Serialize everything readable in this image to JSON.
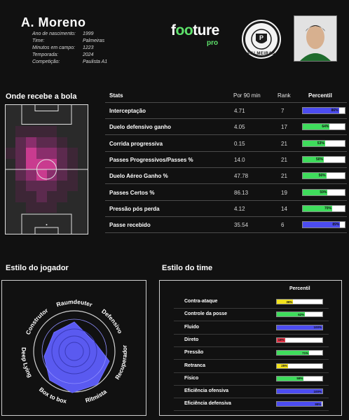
{
  "player": {
    "name": "A. Moreno",
    "info": [
      {
        "label": "Ano de nascimento:",
        "value": "1999"
      },
      {
        "label": "Time:",
        "value": "Palmeiras"
      },
      {
        "label": "Minutos em campo:",
        "value": "1223"
      },
      {
        "label": "Temporada:",
        "value": "2024"
      },
      {
        "label": "Competição:",
        "value": "Paulista A1"
      }
    ]
  },
  "brand": {
    "name_pre": "f",
    "name_oo": "oo",
    "name_post": "ture",
    "pro": "pro",
    "accent": "#5ee36b"
  },
  "crest": {
    "text": "PALMEIRAS",
    "monogram": "P",
    "color": "#1b5e20"
  },
  "heatmap": {
    "title": "Onde recebe a bola"
  },
  "stats": {
    "headers": {
      "stat": "Stats",
      "per90": "Por 90 min",
      "rank": "Rank",
      "percentile": "Percentil"
    },
    "rows": [
      {
        "name": "Interceptação",
        "value": "4.71",
        "rank": "7",
        "percentile": 86,
        "label": "86%",
        "color": "#4c4cf0"
      },
      {
        "name": "Duelo defensivo ganho",
        "value": "4.05",
        "rank": "17",
        "percentile": 64,
        "label": "64%",
        "color": "#3fdc5c"
      },
      {
        "name": "Corrida progressiva",
        "value": "0.15",
        "rank": "21",
        "percentile": 53,
        "label": "53%",
        "color": "#3fdc5c"
      },
      {
        "name": "Passes Progressivos/Passes %",
        "value": "14.0",
        "rank": "21",
        "percentile": 50,
        "label": "50%",
        "color": "#3fdc5c"
      },
      {
        "name": "Duelo Aéreo Ganho %",
        "value": "47.78",
        "rank": "21",
        "percentile": 56,
        "label": "56%",
        "color": "#3fdc5c"
      },
      {
        "name": "Passes Certos %",
        "value": "86.13",
        "rank": "19",
        "percentile": 59,
        "label": "59%",
        "color": "#3fdc5c"
      },
      {
        "name": "Pressão pós perda",
        "value": "4.12",
        "rank": "14",
        "percentile": 70,
        "label": "70%",
        "color": "#3fdc5c"
      },
      {
        "name": "Passe recebido",
        "value": "35.54",
        "rank": "6",
        "percentile": 89,
        "label": "89%",
        "color": "#4c4cf0"
      }
    ]
  },
  "player_style": {
    "title": "Estilo do jogador",
    "axes": [
      "Raumdeuter",
      "Defensivo",
      "Recuperador",
      "Ritmista",
      "Box to box",
      "Deep Lying",
      "Construtor"
    ]
  },
  "team_style": {
    "title": "Estilo do time",
    "header": "Percentil",
    "rows": [
      {
        "name": "Contra-ataque",
        "percentile": 36,
        "label": "36%",
        "color": "#f2e21c"
      },
      {
        "name": "Controle da posse",
        "percentile": 62,
        "label": "62%",
        "color": "#3fdc5c"
      },
      {
        "name": "Fluido",
        "percentile": 100,
        "label": "100%",
        "color": "#4c4cf0"
      },
      {
        "name": "Direto",
        "percentile": 18,
        "label": "18%",
        "color": "#e8374a"
      },
      {
        "name": "Pressão",
        "percentile": 71,
        "label": "71%",
        "color": "#3fdc5c"
      },
      {
        "name": "Retranca",
        "percentile": 25,
        "label": "25%",
        "color": "#f2e21c"
      },
      {
        "name": "Físico",
        "percentile": 59,
        "label": "59%",
        "color": "#3fdc5c"
      },
      {
        "name": "Eficiência ofensiva",
        "percentile": 100,
        "label": "100%",
        "color": "#4c4cf0"
      },
      {
        "name": "Eficiência defensiva",
        "percentile": 99,
        "label": "99%",
        "color": "#4c4cf0"
      }
    ]
  }
}
